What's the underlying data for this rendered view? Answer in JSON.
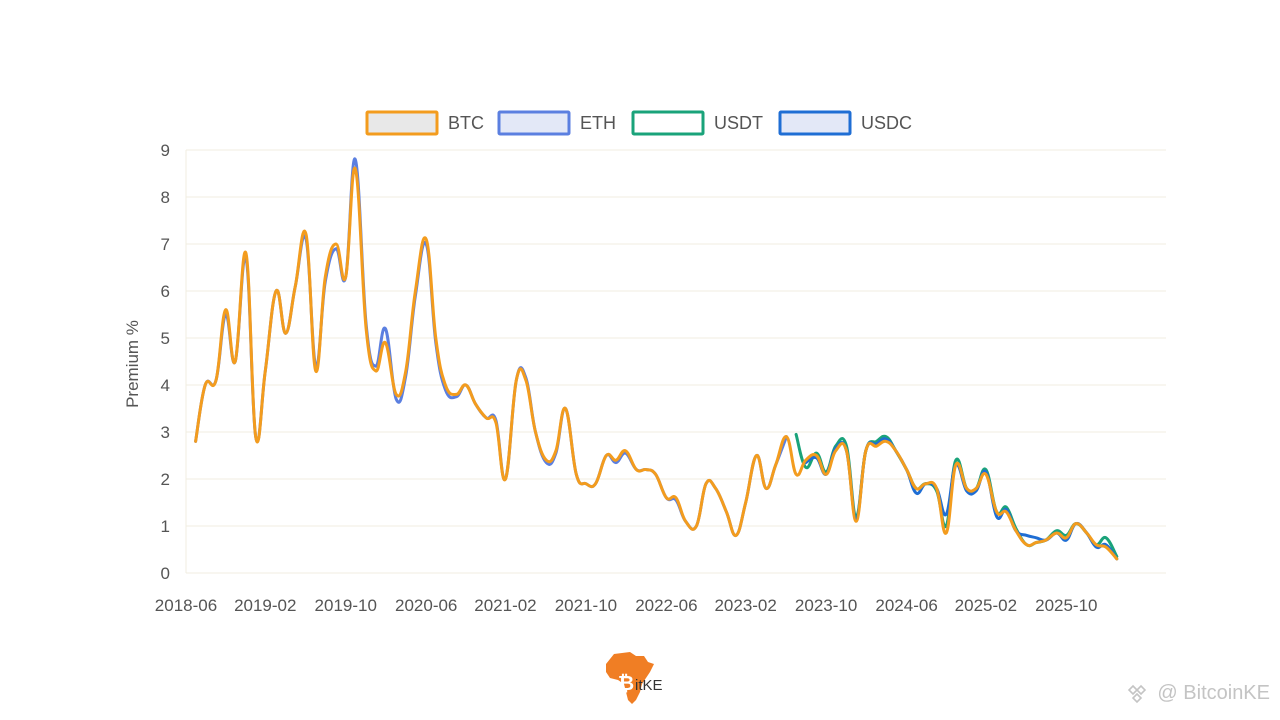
{
  "chart_data": {
    "type": "line",
    "title": "",
    "xlabel": "",
    "ylabel": "Premium %",
    "ylim": [
      0,
      9
    ],
    "yticks": [
      0,
      1,
      2,
      3,
      4,
      5,
      6,
      7,
      8,
      9
    ],
    "xlim": [
      2018.42,
      2026.58
    ],
    "xtick_labels": [
      "2018-06",
      "2019-02",
      "2019-10",
      "2020-06",
      "2021-02",
      "2021-10",
      "2022-06",
      "2023-02",
      "2023-10",
      "2024-06",
      "2025-02",
      "2025-10"
    ],
    "xtick_values": [
      2018.42,
      2019.08,
      2019.75,
      2020.42,
      2021.08,
      2021.75,
      2022.42,
      2023.08,
      2023.75,
      2024.42,
      2025.08,
      2025.75
    ],
    "grid": true,
    "legend_position": "top-center",
    "series": [
      {
        "name": "BTC",
        "color": "#F39C1E",
        "fill": "#e8e8e8",
        "points": [
          [
            2018.5,
            2.8
          ],
          [
            2018.58,
            4.0
          ],
          [
            2018.67,
            4.1
          ],
          [
            2018.75,
            5.6
          ],
          [
            2018.83,
            4.5
          ],
          [
            2018.92,
            6.8
          ],
          [
            2019.0,
            2.9
          ],
          [
            2019.08,
            4.3
          ],
          [
            2019.17,
            6.0
          ],
          [
            2019.25,
            5.1
          ],
          [
            2019.33,
            6.1
          ],
          [
            2019.42,
            7.2
          ],
          [
            2019.5,
            4.3
          ],
          [
            2019.58,
            6.3
          ],
          [
            2019.67,
            7.0
          ],
          [
            2019.75,
            6.3
          ],
          [
            2019.83,
            8.6
          ],
          [
            2019.92,
            5.2
          ],
          [
            2020.0,
            4.3
          ],
          [
            2020.08,
            4.9
          ],
          [
            2020.17,
            3.8
          ],
          [
            2020.25,
            4.3
          ],
          [
            2020.33,
            6.0
          ],
          [
            2020.42,
            7.1
          ],
          [
            2020.5,
            5.0
          ],
          [
            2020.58,
            4.0
          ],
          [
            2020.67,
            3.8
          ],
          [
            2020.75,
            4.0
          ],
          [
            2020.83,
            3.6
          ],
          [
            2020.92,
            3.3
          ],
          [
            2021.0,
            3.2
          ],
          [
            2021.08,
            2.0
          ],
          [
            2021.17,
            4.1
          ],
          [
            2021.25,
            4.1
          ],
          [
            2021.33,
            3.0
          ],
          [
            2021.42,
            2.4
          ],
          [
            2021.5,
            2.6
          ],
          [
            2021.58,
            3.5
          ],
          [
            2021.67,
            2.1
          ],
          [
            2021.75,
            1.9
          ],
          [
            2021.83,
            1.9
          ],
          [
            2021.92,
            2.5
          ],
          [
            2022.0,
            2.4
          ],
          [
            2022.08,
            2.6
          ],
          [
            2022.17,
            2.2
          ],
          [
            2022.25,
            2.2
          ],
          [
            2022.33,
            2.1
          ],
          [
            2022.42,
            1.6
          ],
          [
            2022.5,
            1.6
          ],
          [
            2022.58,
            1.1
          ],
          [
            2022.67,
            1.0
          ],
          [
            2022.75,
            1.9
          ],
          [
            2022.83,
            1.8
          ],
          [
            2022.92,
            1.3
          ],
          [
            2023.0,
            0.8
          ],
          [
            2023.08,
            1.5
          ],
          [
            2023.17,
            2.5
          ],
          [
            2023.25,
            1.8
          ],
          [
            2023.33,
            2.3
          ],
          [
            2023.42,
            2.9
          ],
          [
            2023.5,
            2.1
          ],
          [
            2023.58,
            2.4
          ],
          [
            2023.67,
            2.5
          ],
          [
            2023.75,
            2.1
          ],
          [
            2023.83,
            2.6
          ],
          [
            2023.92,
            2.6
          ],
          [
            2024.0,
            1.1
          ],
          [
            2024.08,
            2.6
          ],
          [
            2024.17,
            2.7
          ],
          [
            2024.25,
            2.8
          ],
          [
            2024.33,
            2.6
          ],
          [
            2024.42,
            2.2
          ],
          [
            2024.5,
            1.8
          ],
          [
            2024.58,
            1.9
          ],
          [
            2024.67,
            1.8
          ],
          [
            2024.75,
            0.85
          ],
          [
            2024.83,
            2.3
          ],
          [
            2024.92,
            1.8
          ],
          [
            2025.0,
            1.8
          ],
          [
            2025.08,
            2.1
          ],
          [
            2025.17,
            1.3
          ],
          [
            2025.25,
            1.3
          ],
          [
            2025.33,
            0.9
          ],
          [
            2025.42,
            0.6
          ],
          [
            2025.5,
            0.65
          ],
          [
            2025.58,
            0.7
          ],
          [
            2025.67,
            0.85
          ],
          [
            2025.75,
            0.75
          ],
          [
            2025.83,
            1.05
          ],
          [
            2025.92,
            0.85
          ],
          [
            2026.0,
            0.6
          ],
          [
            2026.08,
            0.55
          ],
          [
            2026.17,
            0.3
          ]
        ]
      },
      {
        "name": "ETH",
        "color": "#5B7FE0",
        "fill": "#e3e8f7",
        "points": [
          [
            2018.5,
            2.8
          ],
          [
            2018.58,
            4.0
          ],
          [
            2018.67,
            4.1
          ],
          [
            2018.75,
            5.5
          ],
          [
            2018.83,
            4.5
          ],
          [
            2018.92,
            6.7
          ],
          [
            2019.0,
            2.9
          ],
          [
            2019.08,
            4.3
          ],
          [
            2019.17,
            6.0
          ],
          [
            2019.25,
            5.1
          ],
          [
            2019.33,
            6.1
          ],
          [
            2019.42,
            7.1
          ],
          [
            2019.5,
            4.4
          ],
          [
            2019.58,
            6.2
          ],
          [
            2019.67,
            6.9
          ],
          [
            2019.75,
            6.3
          ],
          [
            2019.83,
            8.8
          ],
          [
            2019.92,
            5.3
          ],
          [
            2020.0,
            4.4
          ],
          [
            2020.08,
            5.2
          ],
          [
            2020.17,
            3.7
          ],
          [
            2020.25,
            4.2
          ],
          [
            2020.33,
            5.9
          ],
          [
            2020.42,
            7.0
          ],
          [
            2020.5,
            4.9
          ],
          [
            2020.58,
            3.9
          ],
          [
            2020.67,
            3.75
          ],
          [
            2020.75,
            4.0
          ],
          [
            2020.83,
            3.6
          ],
          [
            2020.92,
            3.3
          ],
          [
            2021.0,
            3.25
          ],
          [
            2021.08,
            2.0
          ],
          [
            2021.17,
            4.1
          ],
          [
            2021.25,
            4.15
          ],
          [
            2021.33,
            3.0
          ],
          [
            2021.42,
            2.35
          ],
          [
            2021.5,
            2.55
          ],
          [
            2021.58,
            3.5
          ],
          [
            2021.67,
            2.1
          ],
          [
            2021.75,
            1.9
          ],
          [
            2021.83,
            1.9
          ],
          [
            2021.92,
            2.5
          ],
          [
            2022.0,
            2.35
          ],
          [
            2022.08,
            2.55
          ],
          [
            2022.17,
            2.2
          ],
          [
            2022.25,
            2.2
          ],
          [
            2022.33,
            2.1
          ],
          [
            2022.42,
            1.6
          ],
          [
            2022.5,
            1.55
          ],
          [
            2022.58,
            1.1
          ],
          [
            2022.67,
            1.0
          ],
          [
            2022.75,
            1.9
          ],
          [
            2022.83,
            1.8
          ],
          [
            2022.92,
            1.3
          ],
          [
            2023.0,
            0.8
          ],
          [
            2023.08,
            1.5
          ],
          [
            2023.17,
            2.5
          ],
          [
            2023.25,
            1.8
          ],
          [
            2023.33,
            2.3
          ],
          [
            2023.42,
            2.9
          ]
        ]
      },
      {
        "name": "USDT",
        "color": "#1AA37A",
        "fill": "#ffffff",
        "points": [
          [
            2023.5,
            2.95
          ],
          [
            2023.58,
            2.25
          ],
          [
            2023.67,
            2.55
          ],
          [
            2023.75,
            2.15
          ],
          [
            2023.83,
            2.7
          ],
          [
            2023.92,
            2.7
          ],
          [
            2024.0,
            1.2
          ],
          [
            2024.08,
            2.6
          ],
          [
            2024.17,
            2.8
          ],
          [
            2024.25,
            2.9
          ],
          [
            2024.33,
            2.6
          ],
          [
            2024.42,
            2.2
          ],
          [
            2024.5,
            1.8
          ],
          [
            2024.58,
            1.9
          ],
          [
            2024.67,
            1.75
          ],
          [
            2024.75,
            1.0
          ],
          [
            2024.83,
            2.4
          ],
          [
            2024.92,
            1.8
          ],
          [
            2025.0,
            1.8
          ],
          [
            2025.08,
            2.2
          ],
          [
            2025.17,
            1.3
          ],
          [
            2025.25,
            1.4
          ],
          [
            2025.33,
            0.95
          ],
          [
            2025.42,
            0.6
          ],
          [
            2025.5,
            0.65
          ],
          [
            2025.58,
            0.7
          ],
          [
            2025.67,
            0.9
          ],
          [
            2025.75,
            0.8
          ],
          [
            2025.83,
            1.05
          ],
          [
            2025.92,
            0.85
          ],
          [
            2026.0,
            0.6
          ],
          [
            2026.08,
            0.75
          ],
          [
            2026.17,
            0.35
          ]
        ]
      },
      {
        "name": "USDC",
        "color": "#1F6ED4",
        "fill": "#e3e8f7",
        "points": [
          [
            2023.58,
            2.35
          ],
          [
            2023.67,
            2.45
          ],
          [
            2023.75,
            2.1
          ],
          [
            2023.83,
            2.65
          ],
          [
            2023.92,
            2.6
          ],
          [
            2024.0,
            1.15
          ],
          [
            2024.08,
            2.6
          ],
          [
            2024.17,
            2.75
          ],
          [
            2024.25,
            2.85
          ],
          [
            2024.33,
            2.6
          ],
          [
            2024.42,
            2.2
          ],
          [
            2024.5,
            1.7
          ],
          [
            2024.58,
            1.9
          ],
          [
            2024.67,
            1.8
          ],
          [
            2024.75,
            1.25
          ],
          [
            2024.83,
            2.3
          ],
          [
            2024.92,
            1.75
          ],
          [
            2025.0,
            1.75
          ],
          [
            2025.08,
            2.15
          ],
          [
            2025.17,
            1.2
          ],
          [
            2025.25,
            1.35
          ],
          [
            2025.33,
            0.9
          ],
          [
            2025.42,
            0.8
          ],
          [
            2025.5,
            0.75
          ],
          [
            2025.58,
            0.7
          ],
          [
            2025.67,
            0.85
          ],
          [
            2025.75,
            0.7
          ],
          [
            2025.83,
            1.05
          ],
          [
            2025.92,
            0.85
          ],
          [
            2026.0,
            0.55
          ],
          [
            2026.08,
            0.6
          ],
          [
            2026.17,
            0.3
          ]
        ]
      }
    ]
  },
  "logo": {
    "text": "itKE",
    "color": "#F07E24"
  },
  "watermark": {
    "text": "@ BitcoinKE",
    "color": "#c4c4c4"
  }
}
